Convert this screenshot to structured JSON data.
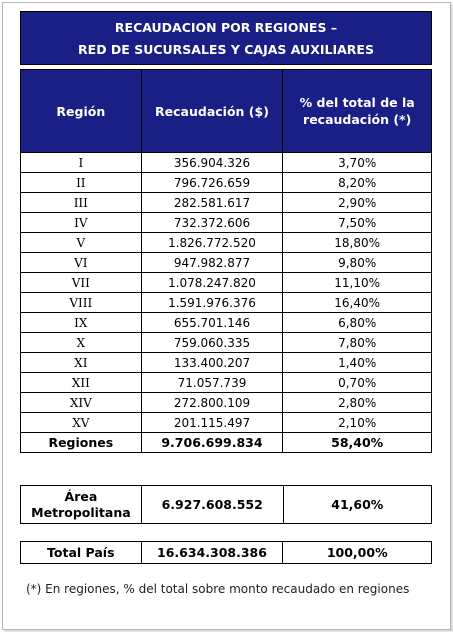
{
  "title": {
    "line1": "RECAUDACION POR REGIONES –",
    "line2": "RED DE SUCURSALES Y CAJAS AUXILIARES"
  },
  "table": {
    "headers": [
      "Región",
      "Recaudación ($)",
      "% del total de la recaudación (*)"
    ],
    "rows": [
      {
        "region": "I",
        "amount": "356.904.326",
        "pct": "3,70%"
      },
      {
        "region": "II",
        "amount": "796.726.659",
        "pct": "8,20%"
      },
      {
        "region": "III",
        "amount": "282.581.617",
        "pct": "2,90%"
      },
      {
        "region": "IV",
        "amount": "732.372.606",
        "pct": "7,50%"
      },
      {
        "region": "V",
        "amount": "1.826.772.520",
        "pct": "18,80%"
      },
      {
        "region": "VI",
        "amount": "947.982.877",
        "pct": "9,80%"
      },
      {
        "region": "VII",
        "amount": "1.078.247.820",
        "pct": "11,10%"
      },
      {
        "region": "VIII",
        "amount": "1.591.976.376",
        "pct": "16,40%"
      },
      {
        "region": "IX",
        "amount": "655.701.146",
        "pct": "6,80%"
      },
      {
        "region": "X",
        "amount": "759.060.335",
        "pct": "7,80%"
      },
      {
        "region": "XI",
        "amount": "133.400.207",
        "pct": "1,40%"
      },
      {
        "region": "XII",
        "amount": "71.057.739",
        "pct": "0,70%"
      },
      {
        "region": "XIV",
        "amount": "272.800.109",
        "pct": "2,80%"
      },
      {
        "region": "XV",
        "amount": "201.115.497",
        "pct": "2,10%"
      }
    ],
    "total": {
      "label": "Regiones",
      "amount": "9.706.699.834",
      "pct": "58,40%"
    }
  },
  "metro": {
    "label_line1": "Área",
    "label_line2": "Metropolitana",
    "amount": "6.927.608.552",
    "pct": "41,60%"
  },
  "pais": {
    "label": "Total País",
    "amount": "16.634.308.386",
    "pct": "100,00%"
  },
  "footnote": "(*) En regiones, % del total sobre monto recaudado en regiones"
}
